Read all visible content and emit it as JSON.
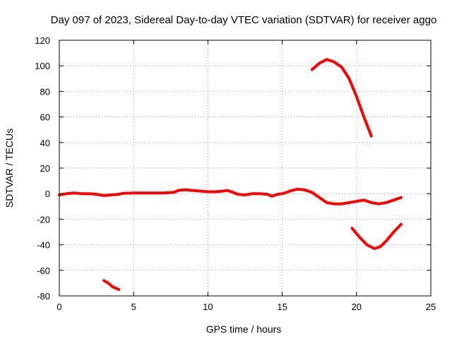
{
  "chart_data": {
    "type": "line",
    "title": "Day 097 of 2023, Sidereal Day-to-day VTEC variation (SDTVAR) for receiver aggo",
    "xlabel": "GPS time / hours",
    "ylabel": "SDTVAR / TECUs",
    "xlim": [
      0,
      25
    ],
    "ylim": [
      -80,
      120
    ],
    "xticks": [
      0,
      5,
      10,
      15,
      20,
      25
    ],
    "yticks": [
      -80,
      -60,
      -40,
      -20,
      0,
      20,
      40,
      60,
      80,
      100,
      120
    ],
    "grid": true,
    "color": "#ff0000",
    "series": [
      {
        "name": "main-trace",
        "points": [
          [
            0,
            -1
          ],
          [
            0.5,
            0
          ],
          [
            1,
            0.5
          ],
          [
            1.5,
            0
          ],
          [
            2,
            0
          ],
          [
            2.5,
            -0.5
          ],
          [
            3,
            -1.5
          ],
          [
            3.5,
            -1
          ],
          [
            4,
            -0.5
          ],
          [
            4.3,
            0.3
          ],
          [
            5,
            0.5
          ],
          [
            6,
            0.5
          ],
          [
            7,
            0.5
          ],
          [
            7.7,
            1
          ],
          [
            8,
            2.5
          ],
          [
            8.5,
            3
          ],
          [
            9,
            2.5
          ],
          [
            9.5,
            2
          ],
          [
            10,
            1.5
          ],
          [
            10.5,
            1.5
          ],
          [
            11,
            2
          ],
          [
            11.3,
            2.5
          ],
          [
            11.7,
            1
          ],
          [
            12,
            -0.5
          ],
          [
            12.5,
            -1
          ],
          [
            13,
            0
          ],
          [
            13.5,
            0
          ],
          [
            14,
            -0.5
          ],
          [
            14.3,
            -2
          ],
          [
            14.7,
            -0.5
          ],
          [
            15,
            0
          ],
          [
            15.3,
            1
          ],
          [
            15.5,
            2
          ],
          [
            16,
            3.5
          ],
          [
            16.5,
            3
          ],
          [
            17,
            1
          ],
          [
            17.5,
            -3
          ],
          [
            18,
            -7
          ],
          [
            18.5,
            -8
          ],
          [
            19,
            -8
          ],
          [
            19.5,
            -7
          ],
          [
            20,
            -6
          ],
          [
            20.5,
            -5
          ],
          [
            21,
            -7
          ],
          [
            21.5,
            -8
          ],
          [
            22,
            -7
          ],
          [
            22.5,
            -5
          ],
          [
            23,
            -3
          ]
        ]
      },
      {
        "name": "upper-arc",
        "points": [
          [
            17,
            97
          ],
          [
            17.5,
            102
          ],
          [
            18,
            105
          ],
          [
            18.5,
            103
          ],
          [
            19,
            99
          ],
          [
            19.5,
            90
          ],
          [
            20,
            76
          ],
          [
            20.5,
            60
          ],
          [
            21,
            45
          ]
        ]
      },
      {
        "name": "lower-arc",
        "points": [
          [
            19.7,
            -27
          ],
          [
            20.2,
            -34
          ],
          [
            20.7,
            -40
          ],
          [
            21.2,
            -43
          ],
          [
            21.6,
            -41.5
          ],
          [
            22,
            -37
          ],
          [
            22.5,
            -30
          ],
          [
            23,
            -24
          ]
        ]
      },
      {
        "name": "lower-left-segment",
        "points": [
          [
            3,
            -68
          ],
          [
            3.3,
            -70
          ],
          [
            3.6,
            -73
          ],
          [
            4,
            -75
          ]
        ]
      }
    ]
  }
}
